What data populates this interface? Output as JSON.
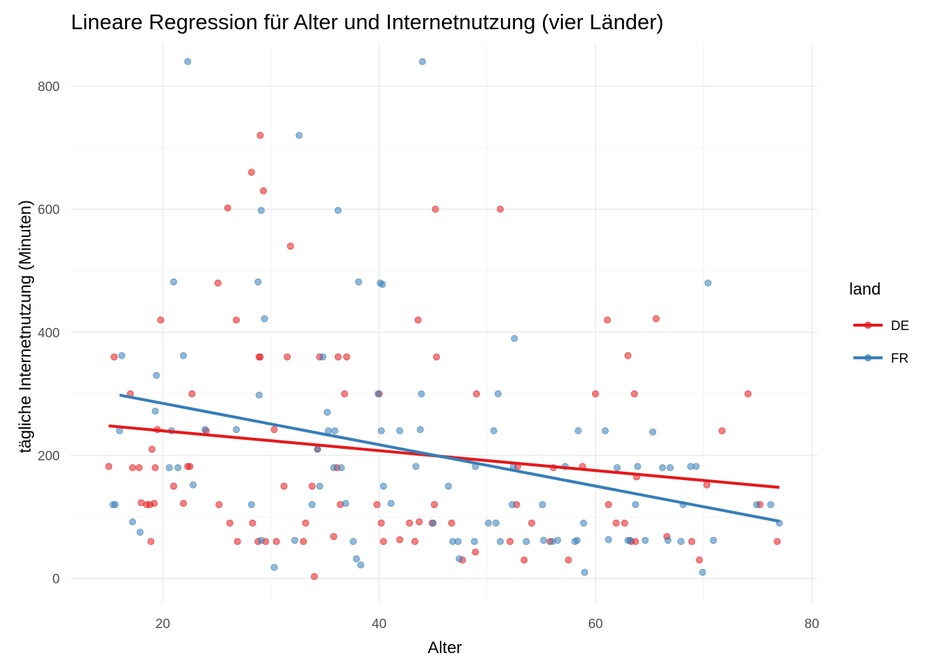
{
  "chart_data": {
    "type": "scatter",
    "title": "Lineare Regression für Alter und Internetnutzung (vier Länder)",
    "xlabel": "Alter",
    "ylabel": "tägliche Internetnutzung (Minuten)",
    "xlim": [
      11.5,
      80.5
    ],
    "ylim": [
      -40,
      870
    ],
    "x_ticks": [
      20,
      40,
      60,
      80
    ],
    "y_ticks": [
      0,
      200,
      400,
      600,
      800
    ],
    "x_ticks_labels": [
      "20",
      "40",
      "60",
      "80"
    ],
    "y_ticks_labels": [
      "0",
      "200",
      "400",
      "600",
      "800"
    ],
    "grid": true,
    "legend": {
      "title": "land",
      "position": "right"
    },
    "series": [
      {
        "name": "DE",
        "color": "#e41a1c",
        "regression": {
          "x": [
            15,
            77
          ],
          "y": [
            248,
            148
          ]
        },
        "points": [
          [
            15,
            182
          ],
          [
            15.5,
            360
          ],
          [
            17,
            300
          ],
          [
            17.2,
            180
          ],
          [
            17.8,
            180
          ],
          [
            18,
            123
          ],
          [
            18.5,
            120
          ],
          [
            18.8,
            120
          ],
          [
            19,
            210
          ],
          [
            19.2,
            122
          ],
          [
            19.3,
            180
          ],
          [
            19.5,
            242
          ],
          [
            19.8,
            420
          ],
          [
            18.9,
            60
          ],
          [
            21,
            150
          ],
          [
            21.9,
            122
          ],
          [
            22.3,
            182
          ],
          [
            22.5,
            182
          ],
          [
            22.7,
            300
          ],
          [
            24,
            240
          ],
          [
            25.1,
            480
          ],
          [
            25.2,
            120
          ],
          [
            26,
            602
          ],
          [
            26.2,
            90
          ],
          [
            26.8,
            420
          ],
          [
            26.9,
            60
          ],
          [
            28.2,
            660
          ],
          [
            28.3,
            90
          ],
          [
            28.8,
            60
          ],
          [
            28.9,
            360
          ],
          [
            29,
            720
          ],
          [
            29,
            360
          ],
          [
            29.3,
            630
          ],
          [
            29.5,
            60
          ],
          [
            30.3,
            242
          ],
          [
            30.5,
            60
          ],
          [
            31.2,
            150
          ],
          [
            31.5,
            360
          ],
          [
            31.8,
            540
          ],
          [
            33,
            60
          ],
          [
            33.2,
            90
          ],
          [
            33.8,
            150
          ],
          [
            34,
            3
          ],
          [
            34.3,
            210
          ],
          [
            34.5,
            360
          ],
          [
            35.8,
            68
          ],
          [
            36.1,
            180
          ],
          [
            36.2,
            360
          ],
          [
            36.4,
            120
          ],
          [
            36.8,
            300
          ],
          [
            37,
            360
          ],
          [
            39.8,
            120
          ],
          [
            40,
            300
          ],
          [
            40.2,
            90
          ],
          [
            40.4,
            60
          ],
          [
            41.9,
            63
          ],
          [
            42.8,
            90
          ],
          [
            43.3,
            60
          ],
          [
            43.6,
            420
          ],
          [
            43.7,
            92
          ],
          [
            44.9,
            90
          ],
          [
            45.1,
            120
          ],
          [
            45.2,
            600
          ],
          [
            45.3,
            360
          ],
          [
            46.7,
            90
          ],
          [
            47.7,
            30
          ],
          [
            48.9,
            43
          ],
          [
            49,
            300
          ],
          [
            51.2,
            600
          ],
          [
            52.1,
            60
          ],
          [
            52.7,
            120
          ],
          [
            52.8,
            182
          ],
          [
            53.4,
            30
          ],
          [
            54.1,
            90
          ],
          [
            55.8,
            60
          ],
          [
            56.1,
            180
          ],
          [
            57.5,
            30
          ],
          [
            58.8,
            182
          ],
          [
            60,
            300
          ],
          [
            61.1,
            420
          ],
          [
            61.2,
            120
          ],
          [
            61.9,
            90
          ],
          [
            62.7,
            90
          ],
          [
            63,
            362
          ],
          [
            63.3,
            60
          ],
          [
            63.6,
            300
          ],
          [
            63.7,
            60
          ],
          [
            63.8,
            165
          ],
          [
            65.6,
            422
          ],
          [
            66.6,
            68
          ],
          [
            68.9,
            60
          ],
          [
            69.6,
            30
          ],
          [
            70.3,
            152
          ],
          [
            71.7,
            240
          ],
          [
            74.1,
            300
          ],
          [
            75.2,
            120
          ],
          [
            76.8,
            60
          ]
        ]
      },
      {
        "name": "FR",
        "color": "#377eb8",
        "regression": {
          "x": [
            16,
            77
          ],
          "y": [
            298,
            93
          ]
        },
        "points": [
          [
            15.4,
            120
          ],
          [
            15.6,
            120
          ],
          [
            16,
            240
          ],
          [
            16.2,
            362
          ],
          [
            17.2,
            92
          ],
          [
            17.9,
            75
          ],
          [
            19.3,
            272
          ],
          [
            19.4,
            330
          ],
          [
            20.6,
            180
          ],
          [
            20.8,
            240
          ],
          [
            21,
            482
          ],
          [
            21.4,
            180
          ],
          [
            21.9,
            362
          ],
          [
            22.3,
            840
          ],
          [
            22.8,
            152
          ],
          [
            23.9,
            242
          ],
          [
            26.8,
            242
          ],
          [
            28.2,
            120
          ],
          [
            28.8,
            482
          ],
          [
            28.9,
            298
          ],
          [
            29.1,
            598
          ],
          [
            29.1,
            62
          ],
          [
            29.4,
            422
          ],
          [
            30.3,
            18
          ],
          [
            32.2,
            62
          ],
          [
            32.6,
            720
          ],
          [
            33.8,
            120
          ],
          [
            34.3,
            210
          ],
          [
            34.5,
            150
          ],
          [
            34.8,
            360
          ],
          [
            35.2,
            270
          ],
          [
            35.3,
            240
          ],
          [
            35.8,
            180
          ],
          [
            35.9,
            240
          ],
          [
            36.2,
            598
          ],
          [
            36.5,
            180
          ],
          [
            36.9,
            122
          ],
          [
            37.6,
            60
          ],
          [
            37.9,
            32
          ],
          [
            38.1,
            482
          ],
          [
            38.3,
            22
          ],
          [
            39.9,
            300
          ],
          [
            40.1,
            480
          ],
          [
            40.2,
            240
          ],
          [
            40.3,
            478
          ],
          [
            40.4,
            150
          ],
          [
            41.1,
            122
          ],
          [
            41.9,
            240
          ],
          [
            43.4,
            182
          ],
          [
            43.8,
            242
          ],
          [
            43.9,
            300
          ],
          [
            44,
            840
          ],
          [
            45,
            90
          ],
          [
            46.4,
            150
          ],
          [
            46.8,
            60
          ],
          [
            47.3,
            60
          ],
          [
            47.4,
            32
          ],
          [
            48.8,
            60
          ],
          [
            48.9,
            182
          ],
          [
            50.1,
            90
          ],
          [
            50.6,
            240
          ],
          [
            50.8,
            90
          ],
          [
            51,
            300
          ],
          [
            51.2,
            60
          ],
          [
            52.3,
            120
          ],
          [
            52.4,
            182
          ],
          [
            52.5,
            390
          ],
          [
            53.6,
            60
          ],
          [
            55.1,
            120
          ],
          [
            55.2,
            62
          ],
          [
            56,
            60
          ],
          [
            56.5,
            62
          ],
          [
            57.2,
            182
          ],
          [
            58.1,
            60
          ],
          [
            58.3,
            62
          ],
          [
            58.4,
            240
          ],
          [
            58.9,
            90
          ],
          [
            59,
            10
          ],
          [
            60.9,
            240
          ],
          [
            61.2,
            63
          ],
          [
            62,
            180
          ],
          [
            63,
            62
          ],
          [
            63.2,
            62
          ],
          [
            63.7,
            120
          ],
          [
            63.9,
            182
          ],
          [
            64.6,
            62
          ],
          [
            65.3,
            238
          ],
          [
            66.2,
            180
          ],
          [
            66.7,
            62
          ],
          [
            66.9,
            180
          ],
          [
            67.9,
            60
          ],
          [
            68.1,
            120
          ],
          [
            68.8,
            182
          ],
          [
            69.3,
            182
          ],
          [
            69.9,
            10
          ],
          [
            70.4,
            480
          ],
          [
            70.9,
            62
          ],
          [
            74.9,
            120
          ],
          [
            76.2,
            120
          ],
          [
            77,
            90
          ]
        ]
      }
    ]
  }
}
